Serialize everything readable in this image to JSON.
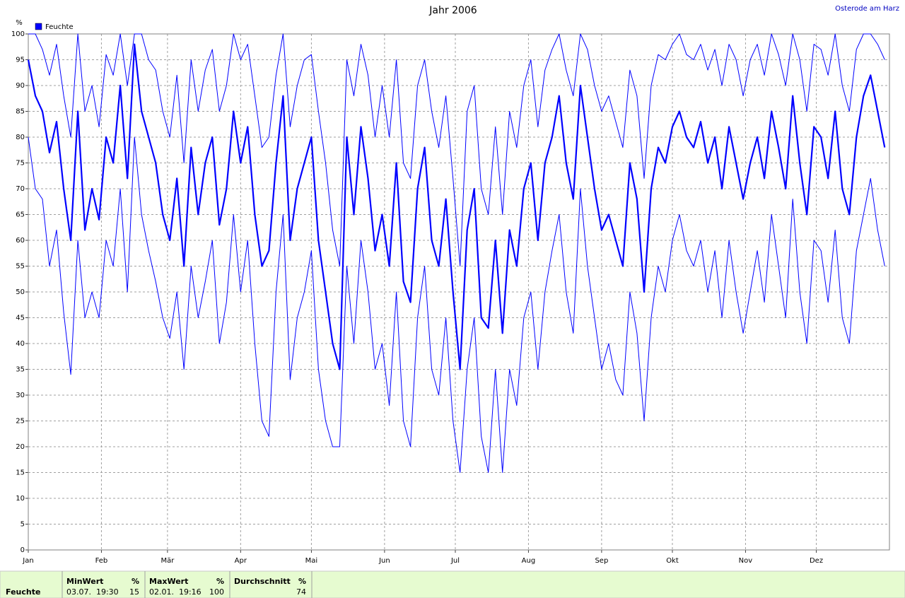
{
  "chart_data": {
    "type": "line",
    "title": "Jahr 2006",
    "subtitle": "Osterode am Harz",
    "y_label": "%",
    "xlim": [
      0,
      365
    ],
    "ylim": [
      0,
      100
    ],
    "xticks": [
      {
        "value": 0,
        "label": "Jan"
      },
      {
        "value": 31,
        "label": "Feb"
      },
      {
        "value": 59,
        "label": "Mär"
      },
      {
        "value": 90,
        "label": "Apr"
      },
      {
        "value": 120,
        "label": "Mai"
      },
      {
        "value": 151,
        "label": "Jun"
      },
      {
        "value": 181,
        "label": "Jul"
      },
      {
        "value": 212,
        "label": "Aug"
      },
      {
        "value": 243,
        "label": "Sep"
      },
      {
        "value": 273,
        "label": "Okt"
      },
      {
        "value": 304,
        "label": "Nov"
      },
      {
        "value": 334,
        "label": "Dez"
      }
    ],
    "yticks": [
      0,
      5,
      10,
      15,
      20,
      25,
      30,
      35,
      40,
      45,
      50,
      55,
      60,
      65,
      70,
      75,
      80,
      85,
      90,
      95,
      100
    ],
    "grid": true,
    "x": [
      0,
      3,
      6,
      9,
      12,
      15,
      18,
      21,
      24,
      27,
      30,
      33,
      36,
      39,
      42,
      45,
      48,
      51,
      54,
      57,
      60,
      63,
      66,
      69,
      72,
      75,
      78,
      81,
      84,
      87,
      90,
      93,
      96,
      99,
      102,
      105,
      108,
      111,
      114,
      117,
      120,
      123,
      126,
      129,
      132,
      135,
      138,
      141,
      144,
      147,
      150,
      153,
      156,
      159,
      162,
      165,
      168,
      171,
      174,
      177,
      180,
      183,
      186,
      189,
      192,
      195,
      198,
      201,
      204,
      207,
      210,
      213,
      216,
      219,
      222,
      225,
      228,
      231,
      234,
      237,
      240,
      243,
      246,
      249,
      252,
      255,
      258,
      261,
      264,
      267,
      270,
      273,
      276,
      279,
      282,
      285,
      288,
      291,
      294,
      297,
      300,
      303,
      306,
      309,
      312,
      315,
      318,
      321,
      324,
      327,
      330,
      333,
      336,
      339,
      342,
      345,
      348,
      351,
      354,
      357,
      360,
      363
    ],
    "series": [
      {
        "name": "Feuchte",
        "color": "#0000ff",
        "values": [
          95,
          88,
          85,
          77,
          83,
          70,
          60,
          85,
          62,
          70,
          64,
          80,
          75,
          90,
          72,
          98,
          85,
          80,
          75,
          65,
          60,
          72,
          55,
          78,
          65,
          75,
          80,
          63,
          70,
          85,
          75,
          82,
          65,
          55,
          58,
          75,
          88,
          60,
          70,
          75,
          80,
          60,
          50,
          40,
          35,
          80,
          65,
          82,
          72,
          58,
          65,
          55,
          75,
          52,
          48,
          70,
          78,
          60,
          55,
          68,
          50,
          35,
          62,
          70,
          45,
          43,
          60,
          42,
          62,
          55,
          70,
          75,
          60,
          75,
          80,
          88,
          75,
          68,
          90,
          80,
          70,
          62,
          65,
          60,
          55,
          75,
          68,
          50,
          70,
          78,
          75,
          82,
          85,
          80,
          78,
          83,
          75,
          80,
          70,
          82,
          75,
          68,
          75,
          80,
          72,
          85,
          78,
          70,
          88,
          75,
          65,
          82,
          80,
          72,
          85,
          70,
          65,
          80,
          88,
          92,
          85,
          78
        ]
      },
      {
        "color": "#0000ff",
        "values": [
          100,
          100,
          97,
          92,
          98,
          88,
          80,
          100,
          85,
          90,
          82,
          96,
          92,
          100,
          90,
          100,
          100,
          95,
          93,
          85,
          80,
          92,
          75,
          95,
          85,
          93,
          97,
          85,
          90,
          100,
          95,
          98,
          88,
          78,
          80,
          92,
          100,
          82,
          90,
          95,
          96,
          85,
          75,
          62,
          55,
          95,
          88,
          98,
          92,
          80,
          90,
          80,
          95,
          75,
          72,
          90,
          95,
          85,
          78,
          88,
          72,
          55,
          85,
          90,
          70,
          65,
          82,
          65,
          85,
          78,
          90,
          95,
          82,
          93,
          97,
          100,
          93,
          88,
          100,
          97,
          90,
          85,
          88,
          83,
          78,
          93,
          88,
          72,
          90,
          96,
          95,
          98,
          100,
          96,
          95,
          98,
          93,
          97,
          90,
          98,
          95,
          88,
          95,
          98,
          92,
          100,
          96,
          90,
          100,
          95,
          85,
          98,
          97,
          92,
          100,
          90,
          85,
          97,
          100,
          100,
          98,
          95
        ]
      },
      {
        "color": "#0000ff",
        "values": [
          80,
          70,
          68,
          55,
          62,
          46,
          34,
          60,
          45,
          50,
          45,
          60,
          55,
          70,
          50,
          80,
          65,
          58,
          52,
          45,
          41,
          50,
          35,
          55,
          45,
          52,
          60,
          40,
          48,
          65,
          50,
          60,
          40,
          25,
          22,
          50,
          65,
          33,
          45,
          50,
          58,
          35,
          25,
          20,
          20,
          55,
          40,
          60,
          50,
          35,
          40,
          28,
          50,
          25,
          20,
          45,
          55,
          35,
          30,
          45,
          25,
          15,
          35,
          45,
          22,
          15,
          35,
          15,
          35,
          28,
          45,
          50,
          35,
          50,
          58,
          65,
          50,
          42,
          70,
          55,
          45,
          35,
          40,
          33,
          30,
          50,
          42,
          25,
          45,
          55,
          50,
          60,
          65,
          58,
          55,
          60,
          50,
          58,
          45,
          60,
          50,
          42,
          50,
          58,
          48,
          65,
          55,
          45,
          68,
          50,
          40,
          60,
          58,
          48,
          62,
          45,
          40,
          58,
          65,
          72,
          62,
          55
        ]
      }
    ]
  },
  "stats": {
    "row_label": "Feuchte",
    "columns": [
      {
        "header": "MinWert",
        "unit": "%",
        "time": "03.07.  19:30",
        "value": 15
      },
      {
        "header": "MaxWert",
        "unit": "%",
        "time": "02.01.  19:16",
        "value": 100
      },
      {
        "header": "Durchschnitt",
        "unit": "%",
        "value": 74
      }
    ]
  }
}
